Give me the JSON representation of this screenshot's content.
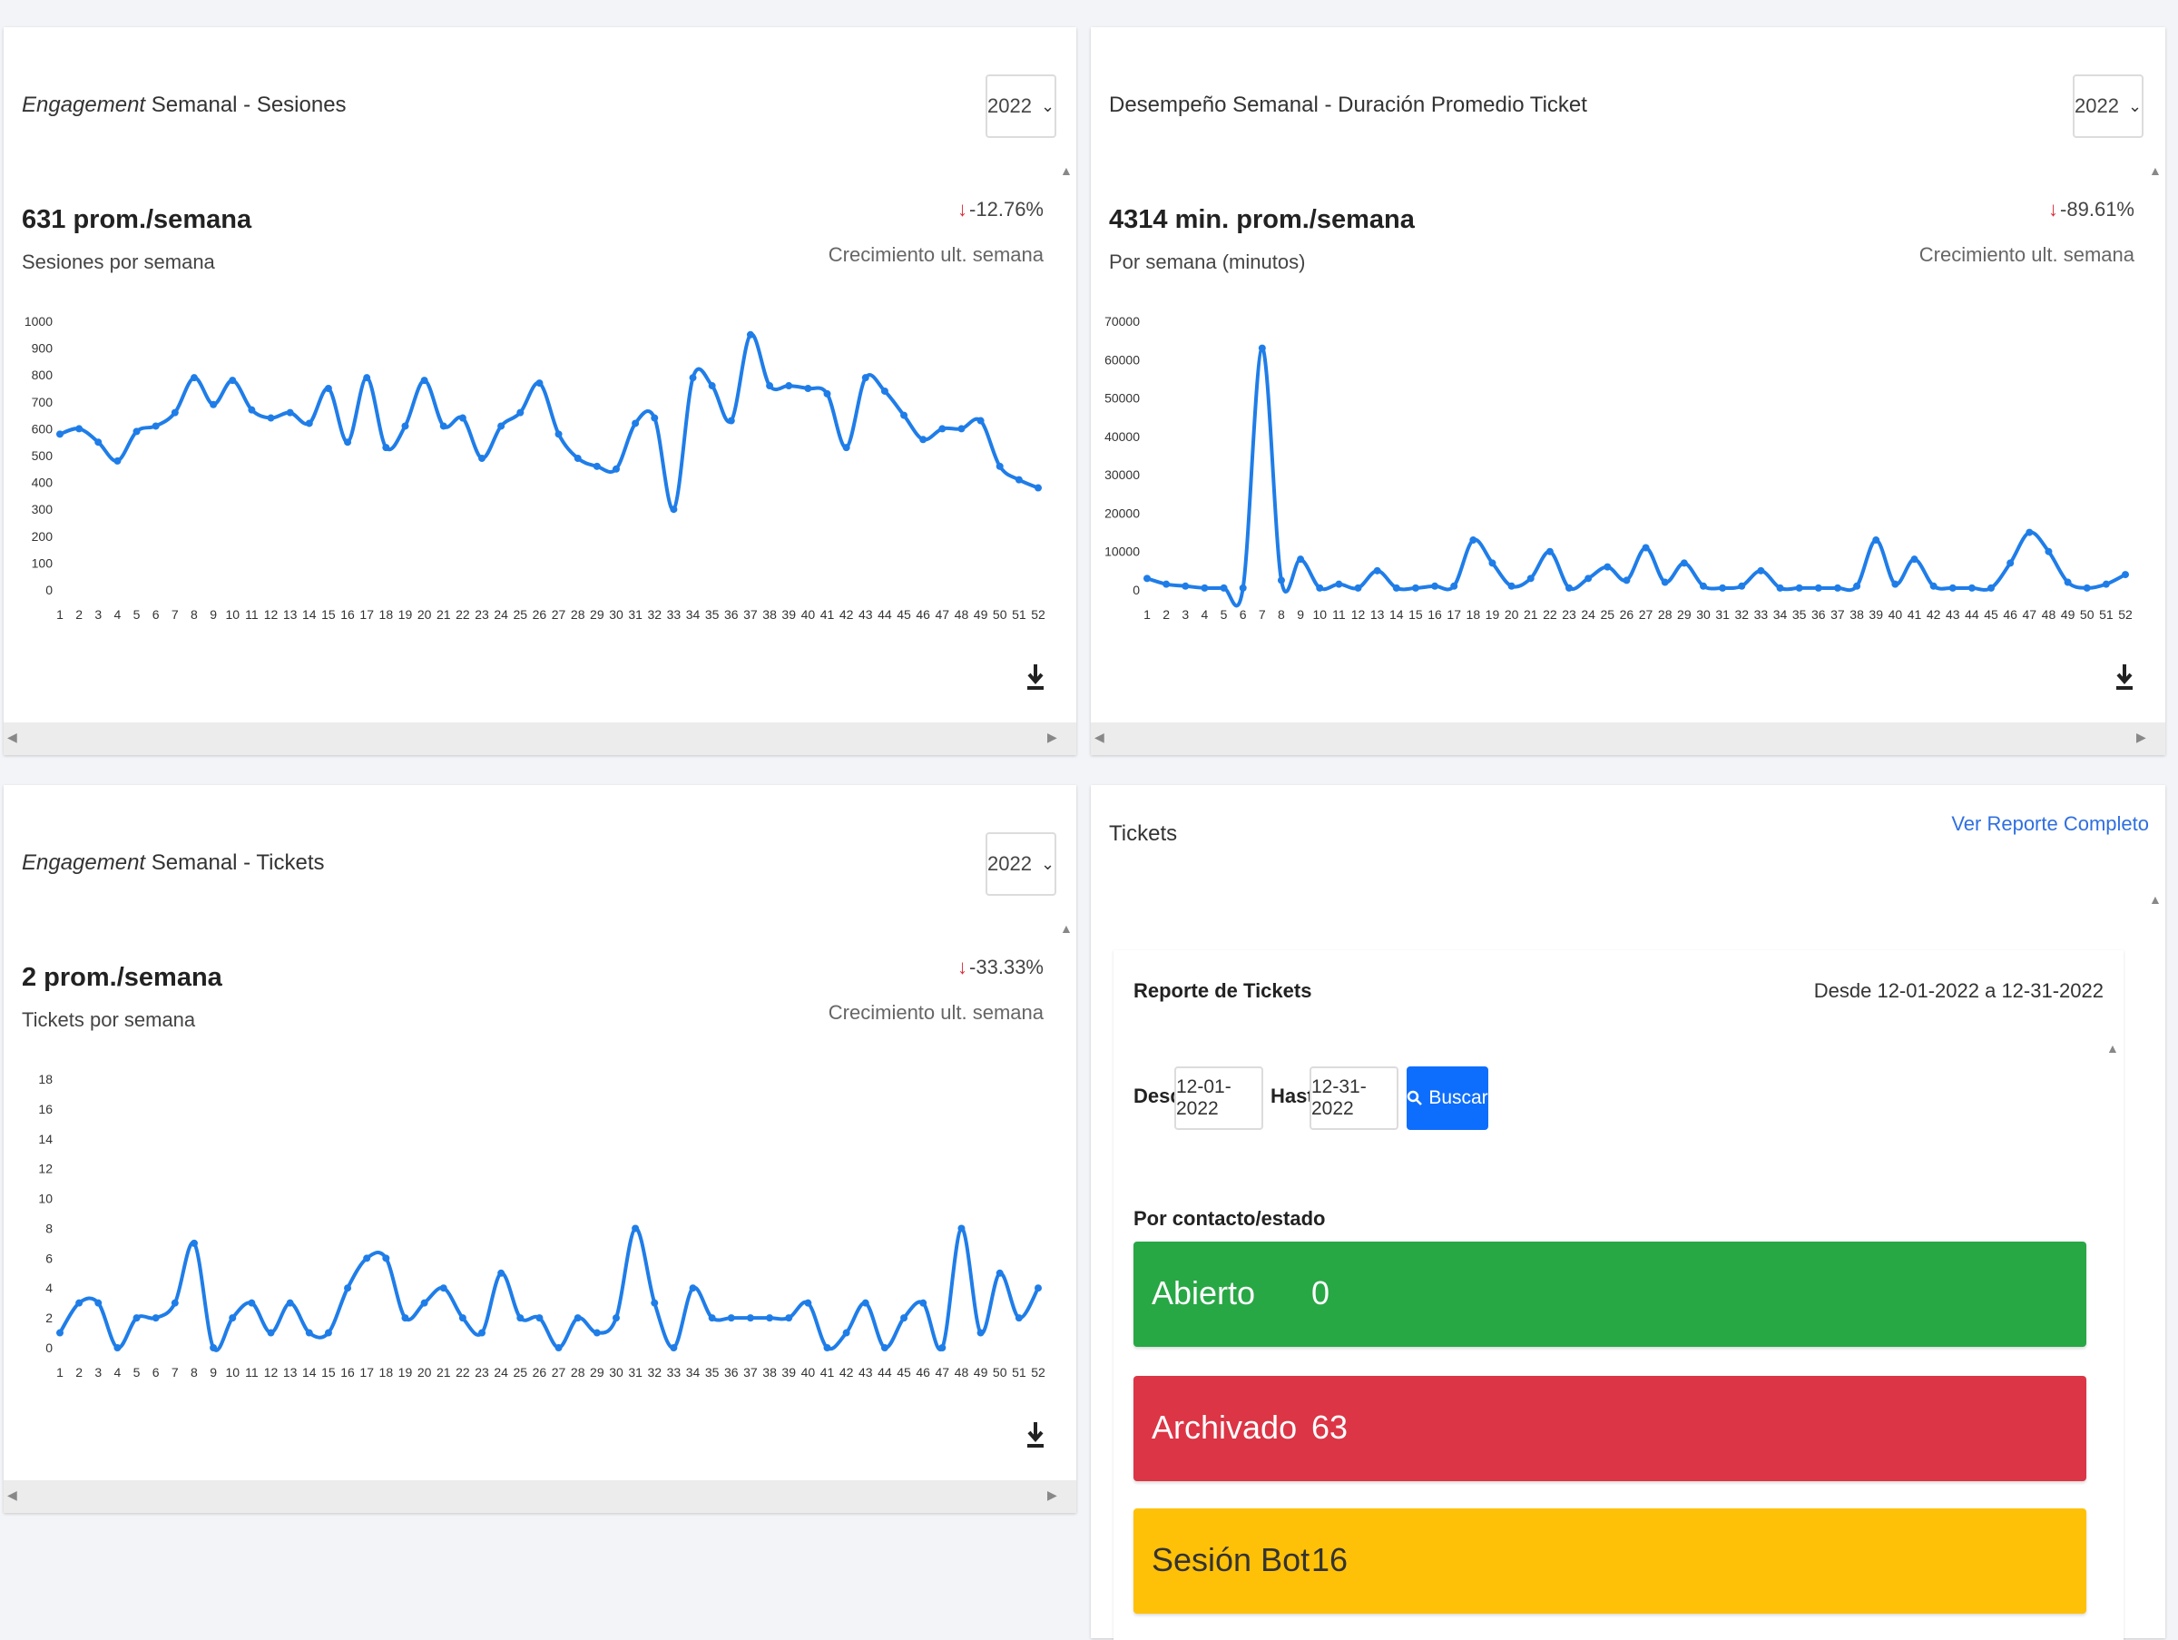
{
  "cards": {
    "sessions": {
      "title_em": "Engagement",
      "title_rest": " Semanal - Sesiones",
      "year": "2022",
      "main_value": "631 prom./semana",
      "sub_label": "Sesiones por semana",
      "growth": "-12.76%",
      "growth_label": "Crecimiento ult. semana"
    },
    "duration": {
      "title": "Desempeño Semanal - Duración Promedio Ticket",
      "year": "2022",
      "main_value": "4314 min. prom./semana",
      "sub_label": "Por semana (minutos)",
      "growth": "-89.61%",
      "growth_label": "Crecimiento ult. semana"
    },
    "tickets": {
      "title_em": "Engagement",
      "title_rest": " Semanal - Tickets",
      "year": "2022",
      "main_value": "2 prom./semana",
      "sub_label": "Tickets por semana",
      "growth": "-33.33%",
      "growth_label": "Crecimiento ult. semana"
    },
    "report": {
      "title": "Tickets",
      "link": "Ver Reporte Completo",
      "inner_title": "Reporte de Tickets",
      "range": "Desde 12-01-2022 a 12-31-2022",
      "desde_label": "Desde",
      "desde_value": "12-01-2022",
      "hasta_label": "Hasta",
      "hasta_value": "12-31-2022",
      "search_label": "Buscar",
      "section_label": "Por contacto/estado",
      "statuses": [
        {
          "label": "Abierto",
          "value": "0",
          "color": "#28a745"
        },
        {
          "label": "Archivado",
          "value": "63",
          "color": "#dc3545"
        },
        {
          "label": "Sesión Bot",
          "value": "16",
          "color": "#ffc107"
        }
      ]
    }
  },
  "chart_data": [
    {
      "type": "line",
      "x": [
        1,
        2,
        3,
        4,
        5,
        6,
        7,
        8,
        9,
        10,
        11,
        12,
        13,
        14,
        15,
        16,
        17,
        18,
        19,
        20,
        21,
        22,
        23,
        24,
        25,
        26,
        27,
        28,
        29,
        30,
        31,
        32,
        33,
        34,
        35,
        36,
        37,
        38,
        39,
        40,
        41,
        42,
        43,
        44,
        45,
        46,
        47,
        48,
        49,
        50,
        51,
        52
      ],
      "values": [
        580,
        600,
        550,
        480,
        590,
        610,
        660,
        790,
        690,
        780,
        670,
        640,
        660,
        620,
        750,
        550,
        790,
        530,
        610,
        780,
        610,
        640,
        490,
        610,
        660,
        770,
        580,
        490,
        460,
        450,
        620,
        640,
        300,
        790,
        760,
        630,
        950,
        760,
        760,
        750,
        730,
        530,
        790,
        740,
        650,
        560,
        600,
        600,
        630,
        460,
        410,
        380
      ],
      "ylim": [
        0,
        1000
      ],
      "yticks": [
        0,
        100,
        200,
        300,
        400,
        500,
        600,
        700,
        800,
        900,
        1000
      ],
      "color": "#1f7de8"
    },
    {
      "type": "line",
      "x": [
        1,
        2,
        3,
        4,
        5,
        6,
        7,
        8,
        9,
        10,
        11,
        12,
        13,
        14,
        15,
        16,
        17,
        18,
        19,
        20,
        21,
        22,
        23,
        24,
        25,
        26,
        27,
        28,
        29,
        30,
        31,
        32,
        33,
        34,
        35,
        36,
        37,
        38,
        39,
        40,
        41,
        42,
        43,
        44,
        45,
        46,
        47,
        48,
        49,
        50,
        51,
        52
      ],
      "values": [
        3000,
        1500,
        1000,
        500,
        500,
        500,
        63000,
        2500,
        8000,
        500,
        1500,
        500,
        5000,
        500,
        500,
        1000,
        1000,
        13000,
        7000,
        1000,
        3000,
        10000,
        500,
        3000,
        6000,
        2500,
        11000,
        2000,
        7000,
        1000,
        500,
        1000,
        5000,
        500,
        500,
        500,
        500,
        1000,
        13000,
        1500,
        8000,
        1000,
        500,
        500,
        500,
        7000,
        15000,
        10000,
        2000,
        500,
        1500,
        4000
      ],
      "ylim": [
        0,
        70000
      ],
      "yticks": [
        0,
        10000,
        20000,
        30000,
        40000,
        50000,
        60000,
        70000
      ],
      "color": "#1f7de8"
    },
    {
      "type": "line",
      "x": [
        1,
        2,
        3,
        4,
        5,
        6,
        7,
        8,
        9,
        10,
        11,
        12,
        13,
        14,
        15,
        16,
        17,
        18,
        19,
        20,
        21,
        22,
        23,
        24,
        25,
        26,
        27,
        28,
        29,
        30,
        31,
        32,
        33,
        34,
        35,
        36,
        37,
        38,
        39,
        40,
        41,
        42,
        43,
        44,
        45,
        46,
        47,
        48,
        49,
        50,
        51,
        52
      ],
      "values": [
        1,
        3,
        3,
        0,
        2,
        2,
        3,
        7,
        0,
        2,
        3,
        1,
        3,
        1,
        1,
        4,
        6,
        6,
        2,
        3,
        4,
        2,
        1,
        5,
        2,
        2,
        0,
        2,
        1,
        2,
        8,
        3,
        0,
        4,
        2,
        2,
        2,
        2,
        2,
        3,
        0,
        1,
        3,
        0,
        2,
        3,
        0,
        8,
        1,
        5,
        2,
        4
      ],
      "ylim": [
        0,
        18
      ],
      "yticks": [
        0,
        2,
        4,
        6,
        8,
        10,
        12,
        14,
        16,
        18
      ],
      "color": "#1f7de8"
    }
  ]
}
